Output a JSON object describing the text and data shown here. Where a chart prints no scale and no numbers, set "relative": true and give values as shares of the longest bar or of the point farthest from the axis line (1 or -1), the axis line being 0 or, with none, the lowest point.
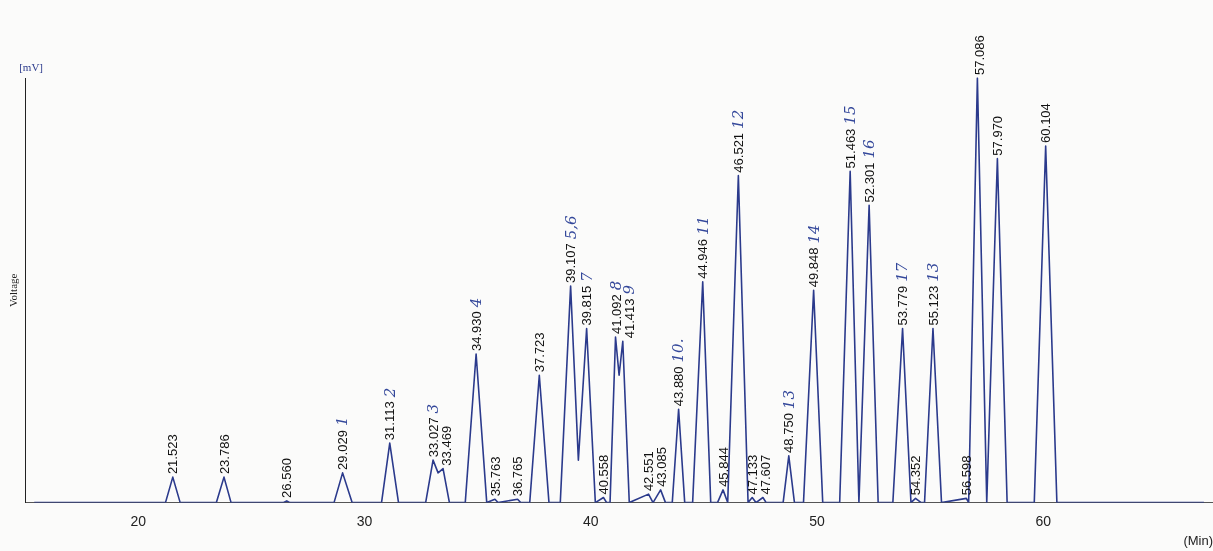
{
  "chart_data": {
    "type": "line",
    "relative": true,
    "xlabel": "(Min)",
    "ylabel": "Voltage",
    "color": "#2b3a8c",
    "marker": "none",
    "line_style": "solid",
    "grid": false,
    "legend": false,
    "xlim": [
      15,
      67.5
    ],
    "xticks": [
      20,
      30,
      40,
      50,
      60
    ],
    "x": [
      15.4,
      21.2,
      21.523,
      21.85,
      23.45,
      23.786,
      24.1,
      26.4,
      26.56,
      26.7,
      28.65,
      29.029,
      29.45,
      30.75,
      31.113,
      31.5,
      32.7,
      33.027,
      33.25,
      33.469,
      33.75,
      34.45,
      34.93,
      35.4,
      35.763,
      35.9,
      36.765,
      36.9,
      37.3,
      37.723,
      38.15,
      38.65,
      39.107,
      39.45,
      39.815,
      40.2,
      40.558,
      40.7,
      40.85,
      41.092,
      41.25,
      41.413,
      41.7,
      42.551,
      42.75,
      43.085,
      43.3,
      43.6,
      43.88,
      44.15,
      44.5,
      44.946,
      45.3,
      45.6,
      45.844,
      46.05,
      46.521,
      46.95,
      47.133,
      47.3,
      47.607,
      47.75,
      48.5,
      48.75,
      49.0,
      49.4,
      49.848,
      50.25,
      51.0,
      51.463,
      51.85,
      52.301,
      52.7,
      53.35,
      53.779,
      54.15,
      54.352,
      54.6,
      54.75,
      55.123,
      55.5,
      56.598,
      56.7,
      57.086,
      57.5,
      57.97,
      58.4,
      59.6,
      60.104,
      60.6,
      67.1
    ],
    "values": [
      0,
      0,
      0.06,
      0,
      0,
      0.06,
      0,
      0,
      0.004,
      0,
      0,
      0.07,
      0,
      0,
      0.14,
      0,
      0,
      0.1,
      0.07,
      0.08,
      0,
      0,
      0.35,
      0,
      0.008,
      0,
      0.008,
      0,
      0,
      0.3,
      0,
      0,
      0.51,
      0.1,
      0.41,
      0,
      0.012,
      0,
      0,
      0.39,
      0.3,
      0.38,
      0,
      0.02,
      0,
      0.03,
      0,
      0,
      0.22,
      0,
      0,
      0.52,
      0,
      0,
      0.03,
      0,
      0.77,
      0,
      0.012,
      0,
      0.012,
      0,
      0,
      0.11,
      0,
      0,
      0.5,
      0,
      0,
      0.78,
      0,
      0.7,
      0,
      0,
      0.41,
      0,
      0.01,
      0,
      0,
      0.41,
      0,
      0.01,
      0,
      1,
      0,
      0.81,
      0,
      0,
      0.84,
      0,
      0
    ],
    "annotations": [
      "[mV]",
      {
        "text": "21.523",
        "x": 21.523,
        "y": 0.06
      },
      {
        "text": "23.786",
        "x": 23.786,
        "y": 0.06
      },
      {
        "text": "26.560",
        "x": 26.56,
        "y": 0.004
      },
      {
        "text": "29.029",
        "x": 29.029,
        "y": 0.07
      },
      "1",
      {
        "text": "31.113",
        "x": 31.113,
        "y": 0.14
      },
      "2",
      {
        "text": "33.027",
        "x": 33.027,
        "y": 0.1
      },
      "3",
      {
        "text": "33.469",
        "x": 33.469,
        "y": 0.08
      },
      {
        "text": "34.930",
        "x": 34.93,
        "y": 0.35
      },
      "4",
      {
        "text": "35.763",
        "x": 35.763,
        "y": 0.008
      },
      {
        "text": "36.765",
        "x": 36.765,
        "y": 0.008
      },
      {
        "text": "37.723",
        "x": 37.723,
        "y": 0.3
      },
      {
        "text": "39.107",
        "x": 39.107,
        "y": 0.51
      },
      "5,6",
      {
        "text": "39.815",
        "x": 39.815,
        "y": 0.41
      },
      "7",
      {
        "text": "40.558",
        "x": 40.558,
        "y": 0.012
      },
      {
        "text": "41.092",
        "x": 41.092,
        "y": 0.39
      },
      "8",
      {
        "text": "41.413",
        "x": 41.413,
        "y": 0.38
      },
      "9",
      {
        "text": "42.551",
        "x": 42.551,
        "y": 0.02
      },
      {
        "text": "43.085",
        "x": 43.085,
        "y": 0.03
      },
      {
        "text": "43.880",
        "x": 43.88,
        "y": 0.22
      },
      "10.",
      {
        "text": "44.946",
        "x": 44.946,
        "y": 0.52
      },
      "11",
      {
        "text": "45.844",
        "x": 45.844,
        "y": 0.03
      },
      {
        "text": "46.521",
        "x": 46.521,
        "y": 0.77
      },
      "12",
      {
        "text": "47.133",
        "x": 47.133,
        "y": 0.012
      },
      {
        "text": "47.607",
        "x": 47.607,
        "y": 0.012
      },
      {
        "text": "48.750",
        "x": 48.75,
        "y": 0.11
      },
      "13",
      {
        "text": "49.848",
        "x": 49.848,
        "y": 0.5
      },
      "14",
      {
        "text": "51.463",
        "x": 51.463,
        "y": 0.78
      },
      "15",
      {
        "text": "52.301",
        "x": 52.301,
        "y": 0.7
      },
      "16",
      {
        "text": "53.779",
        "x": 53.779,
        "y": 0.41
      },
      "17",
      {
        "text": "54.352",
        "x": 54.352,
        "y": 0.01
      },
      {
        "text": "55.123",
        "x": 55.123,
        "y": 0.41
      },
      "13",
      {
        "text": "56.598",
        "x": 56.598,
        "y": 0.01
      },
      {
        "text": "57.086",
        "x": 57.086,
        "y": 1
      },
      {
        "text": "57.970",
        "x": 57.97,
        "y": 0.81
      },
      {
        "text": "60.104",
        "x": 60.104,
        "y": 0.84
      }
    ]
  }
}
